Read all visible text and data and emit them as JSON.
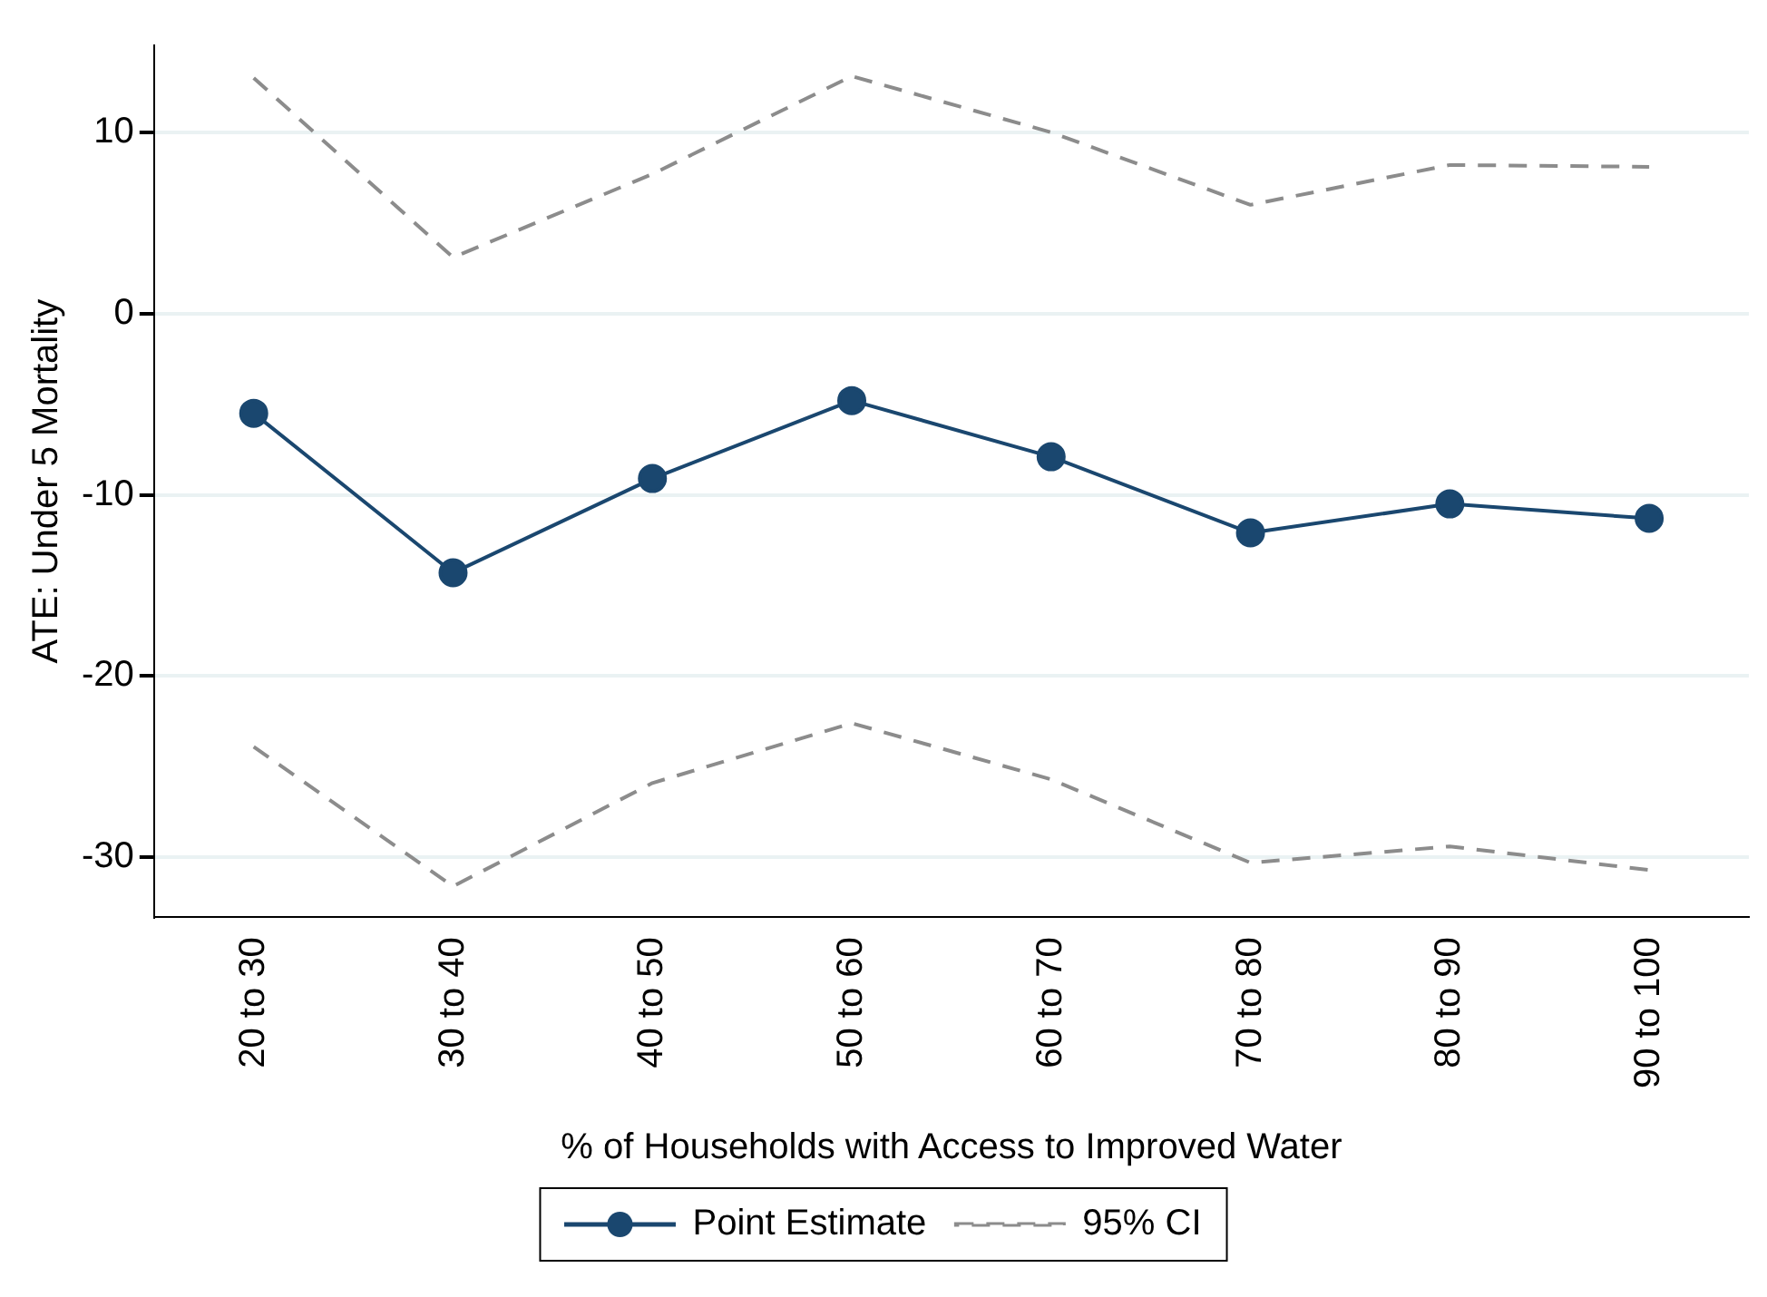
{
  "chart_data": {
    "type": "line",
    "xlabel": "% of Households with Access to Improved Water",
    "ylabel": "ATE: Under 5 Mortality",
    "categories": [
      "20 to 30",
      "30 to 40",
      "40 to 50",
      "50 to 60",
      "60 to 70",
      "70 to 80",
      "80 to 90",
      "90 to 100"
    ],
    "series": [
      {
        "name": "Point Estimate",
        "color": "#1a476f",
        "marker": "circle",
        "line_style": "solid",
        "values": [
          -5.5,
          -14.3,
          -9.1,
          -4.8,
          -7.9,
          -12.1,
          -10.5,
          -11.3
        ]
      },
      {
        "name": "95% CI",
        "color": "#8c8c8c",
        "marker": "none",
        "line_style": "dashed",
        "values": [
          13.0,
          3.1,
          7.7,
          13.1,
          10.0,
          6.0,
          8.2,
          8.1
        ]
      },
      {
        "color": "#8c8c8c",
        "marker": "none",
        "line_style": "dashed",
        "values": [
          -23.9,
          -31.6,
          -25.9,
          -22.6,
          -25.7,
          -30.3,
          -29.4,
          -30.7
        ]
      }
    ],
    "ylim": [
      -33.3,
      14.8
    ],
    "yticks": [
      -30,
      -20,
      -10,
      0,
      10
    ],
    "grid": "y",
    "legend": "bottom"
  }
}
